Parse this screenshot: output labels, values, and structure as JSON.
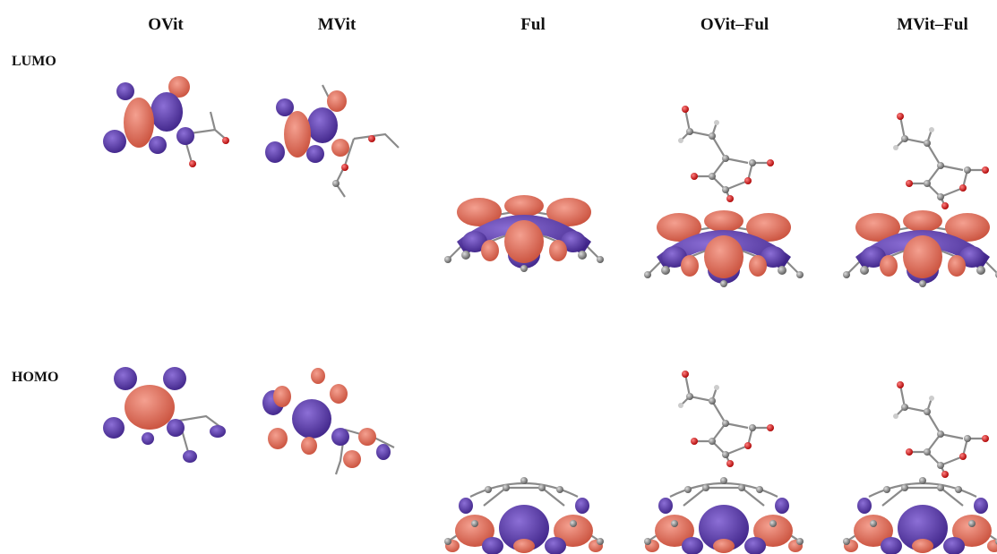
{
  "header": {
    "columns": [
      "OVit",
      "MVit",
      "Ful",
      "OVit–Ful",
      "MVit–Ful"
    ]
  },
  "rows": [
    "LUMO",
    "HOMO"
  ]
}
